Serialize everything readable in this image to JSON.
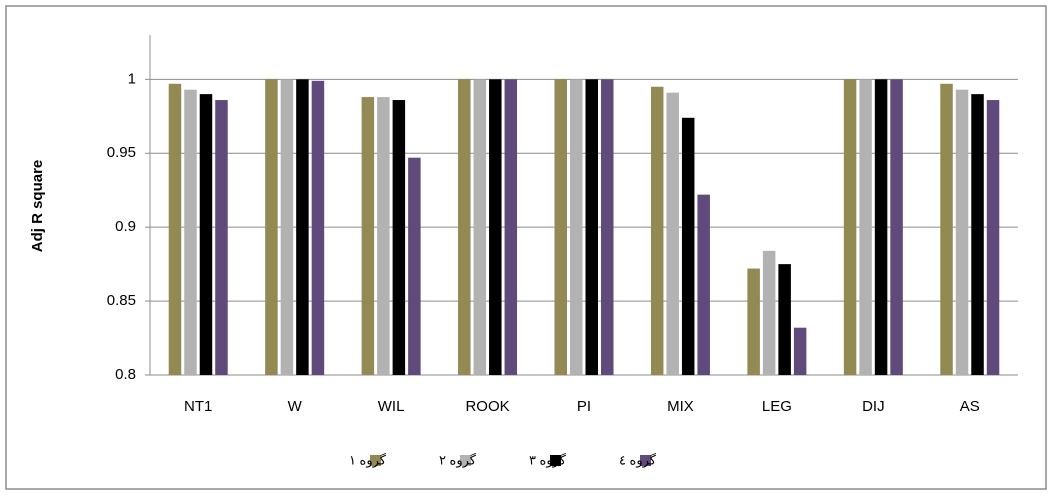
{
  "chart_data": {
    "type": "bar",
    "y_label": "Adj R square",
    "categories": [
      "NT1",
      "W",
      "WIL",
      "ROOK",
      "PI",
      "MIX",
      "LEG",
      "DIJ",
      "AS"
    ],
    "series": [
      {
        "name": "گروه ١",
        "color": "#938953",
        "values": [
          0.997,
          1,
          0.988,
          1,
          1,
          0.995,
          0.872,
          1,
          0.997
        ]
      },
      {
        "name": "گروه ٢",
        "color": "#b2b2b2",
        "values": [
          0.993,
          1,
          0.988,
          1,
          1,
          0.991,
          0.884,
          1,
          0.993
        ]
      },
      {
        "name": "گروه ٣",
        "color": "#000000",
        "values": [
          0.99,
          1,
          0.986,
          1,
          1,
          0.974,
          0.875,
          1,
          0.99
        ]
      },
      {
        "name": "گروه ٤",
        "color": "#604a7b",
        "values": [
          0.986,
          0.999,
          0.947,
          1,
          1,
          0.922,
          0.832,
          1,
          0.986
        ]
      }
    ],
    "ylim": [
      0.8,
      1.03
    ],
    "yticks": [
      0.8,
      0.85,
      0.9,
      0.95,
      1
    ],
    "grid": true
  }
}
